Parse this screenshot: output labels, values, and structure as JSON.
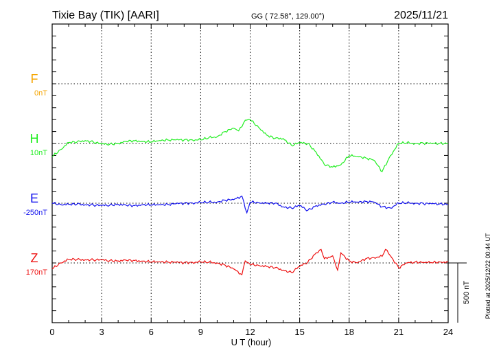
{
  "header": {
    "station": "Tixie Bay (TIK)  [AARI]",
    "coords": "GG ( 72.58°, 129.00°)",
    "date": "2025/11/21"
  },
  "footer": {
    "plotted": "Plotted at 2025/12/22 00:44 UT",
    "scale_label": "500 nT"
  },
  "chart_data": {
    "type": "line",
    "xlabel": "U T (hour)",
    "xlim": [
      0,
      24
    ],
    "xticks": [
      "0",
      "3",
      "6",
      "9",
      "12",
      "15",
      "18",
      "21",
      "24"
    ],
    "scale_bar_nT": 500,
    "grid": true,
    "series": [
      {
        "name": "F",
        "offset_label": "0nT",
        "color": "#f5a500",
        "x": [],
        "values": []
      },
      {
        "name": "H",
        "offset_label": "10nT",
        "color": "#22ee22",
        "x": [
          0,
          0.5,
          1,
          1.5,
          2,
          2.5,
          3,
          3.5,
          4,
          4.5,
          5,
          5.5,
          6,
          6.5,
          7,
          7.5,
          8,
          8.5,
          9,
          9.5,
          10,
          10.5,
          11,
          11.3,
          11.7,
          12,
          12.5,
          13,
          13.5,
          14,
          14.5,
          15,
          15.5,
          16,
          16.5,
          17,
          17.5,
          18,
          18.5,
          19,
          19.5,
          20,
          20.5,
          21,
          21.5,
          22,
          22.5,
          23,
          23.5,
          24
        ],
        "values": [
          -110,
          -52,
          8,
          12,
          25,
          12,
          -5,
          -5,
          0,
          17,
          23,
          17,
          12,
          25,
          30,
          30,
          30,
          30,
          30,
          48,
          57,
          100,
          128,
          105,
          195,
          200,
          138,
          70,
          42,
          42,
          -15,
          5,
          0,
          -73,
          -178,
          -197,
          -178,
          -102,
          -108,
          -120,
          -140,
          -235,
          -102,
          0,
          5,
          0,
          3,
          0,
          2,
          0
        ]
      },
      {
        "name": "E",
        "offset_label": "-250nT",
        "color": "#1111ee",
        "x": [
          0,
          0.5,
          1,
          1.5,
          2,
          2.5,
          3,
          3.5,
          4,
          4.5,
          5,
          5.5,
          6,
          6.5,
          7,
          7.5,
          8,
          8.5,
          9,
          9.5,
          10,
          10.5,
          11,
          11.5,
          11.8,
          12,
          12.5,
          13,
          13.5,
          14,
          14.5,
          15,
          15.5,
          16,
          16.5,
          17,
          17.5,
          18,
          18.5,
          19,
          19.5,
          20,
          20.5,
          21,
          21.5,
          22,
          22.5,
          23,
          23.5,
          24
        ],
        "values": [
          0,
          -10,
          -10,
          -8,
          -12,
          -15,
          -20,
          -15,
          -10,
          -18,
          -20,
          -12,
          -15,
          -12,
          -10,
          -5,
          0,
          2,
          5,
          8,
          10,
          25,
          30,
          60,
          -80,
          10,
          5,
          0,
          0,
          -30,
          -40,
          -20,
          -60,
          -20,
          -10,
          10,
          0,
          10,
          10,
          15,
          10,
          -30,
          -40,
          0,
          2,
          0,
          -3,
          -5,
          -5,
          -10
        ]
      },
      {
        "name": "Z",
        "offset_label": "170nT",
        "color": "#ee1111",
        "x": [
          0,
          0.5,
          1,
          1.5,
          2,
          2.5,
          3,
          3.5,
          4,
          4.5,
          5,
          5.5,
          6,
          6.5,
          7,
          7.5,
          8,
          8.5,
          9,
          9.5,
          10,
          10.5,
          11,
          11.5,
          11.7,
          12,
          12.5,
          13,
          13.5,
          14,
          14.5,
          15,
          15.5,
          16,
          16.3,
          16.5,
          17,
          17.3,
          17.5,
          18,
          18.5,
          19,
          19.5,
          20,
          20.2,
          20.5,
          21,
          21.5,
          22,
          22.5,
          23,
          23.5,
          24
        ],
        "values": [
          -50,
          0,
          30,
          28,
          27,
          26,
          25,
          20,
          17,
          22,
          20,
          15,
          8,
          10,
          8,
          5,
          3,
          5,
          8,
          6,
          0,
          -20,
          -50,
          -98,
          17,
          -12,
          -20,
          -30,
          -40,
          -60,
          -80,
          -30,
          8,
          85,
          113,
          35,
          60,
          -60,
          85,
          17,
          0,
          35,
          45,
          55,
          113,
          60,
          -40,
          0,
          8,
          5,
          3,
          8,
          6
        ]
      }
    ]
  }
}
